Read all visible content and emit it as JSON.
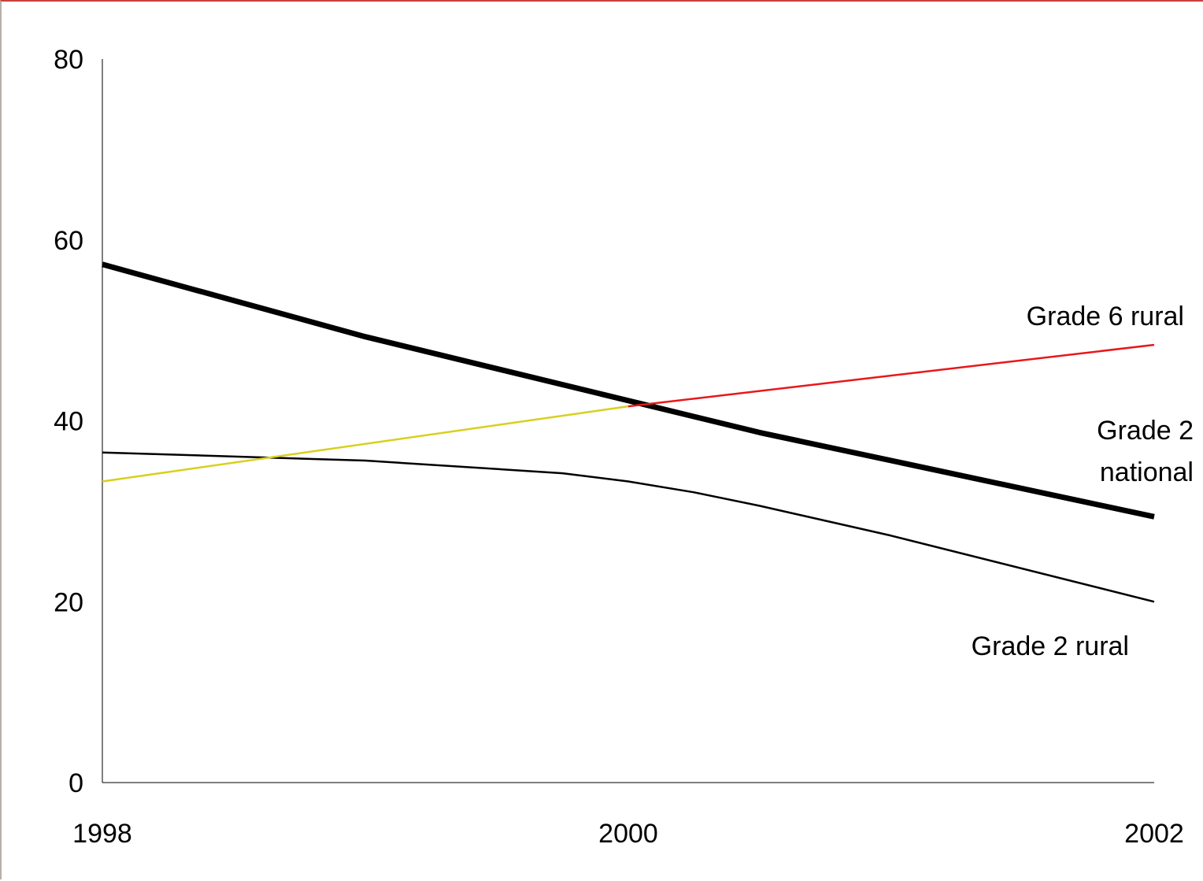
{
  "chart_data": {
    "type": "line",
    "title": "",
    "xlabel": "",
    "ylabel": "",
    "xlim": [
      1998,
      2002
    ],
    "ylim": [
      0,
      80
    ],
    "x_ticks": [
      1998,
      2000,
      2002
    ],
    "y_ticks": [
      0,
      20,
      40,
      60,
      80
    ],
    "x_tick_labels": [
      "1998",
      "2000",
      "2002"
    ],
    "y_tick_labels": [
      "0",
      "20",
      "40",
      "60",
      "80"
    ],
    "grid": false,
    "legend": "none",
    "series": [
      {
        "name": "Grade 2 national",
        "color": "#000000",
        "style": "thick",
        "label_lines": [
          "Grade 2",
          "national"
        ],
        "points": [
          {
            "x": 1998,
            "y": 57.3
          },
          {
            "x": 1999,
            "y": 49.3
          },
          {
            "x": 2000.5,
            "y": 38.7
          },
          {
            "x": 2002,
            "y": 29.4
          }
        ]
      },
      {
        "name": "Grade 2 rural",
        "color": "#000000",
        "style": "thin",
        "label_lines": [
          "Grade 2 rural"
        ],
        "points": [
          {
            "x": 1998,
            "y": 36.5
          },
          {
            "x": 1999,
            "y": 35.6
          },
          {
            "x": 1999.75,
            "y": 34.2
          },
          {
            "x": 2000,
            "y": 33.3
          },
          {
            "x": 2000.25,
            "y": 32.1
          },
          {
            "x": 2000.5,
            "y": 30.6
          },
          {
            "x": 2001,
            "y": 27.3
          },
          {
            "x": 2002,
            "y": 20.0
          }
        ]
      },
      {
        "name": "Grade 6 rural",
        "color": "#e8171b",
        "color_early": "#d9cf1e",
        "color_change_x": 2000,
        "style": "thin",
        "label_lines": [
          "Grade 6 rural"
        ],
        "points": [
          {
            "x": 1998,
            "y": 33.3
          },
          {
            "x": 2000,
            "y": 41.6
          },
          {
            "x": 2002,
            "y": 48.4
          }
        ]
      }
    ]
  }
}
